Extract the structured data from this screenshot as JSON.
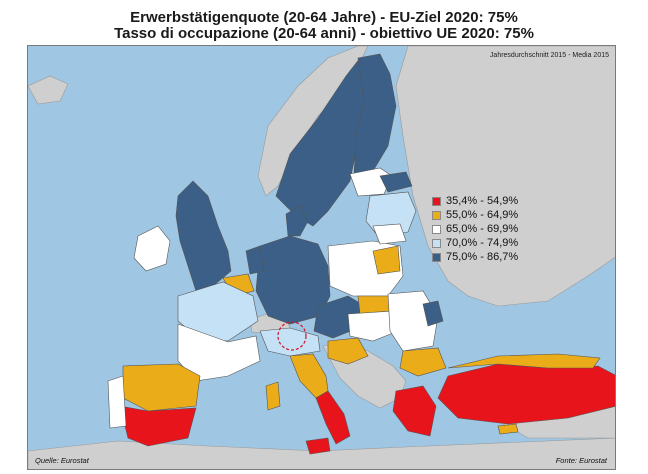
{
  "title_line1": "Erwerbstätigenquote (20-64 Jahre) - EU-Ziel 2020: 75%",
  "title_line2": "Tasso di occupazione (20-64 anni) - obiettivo UE 2020: 75%",
  "period_note": "Jahresdurchschnitt 2015 - Media 2015",
  "legend": [
    {
      "label": "35,4% - 54,9%",
      "color": "#e8141c"
    },
    {
      "label": "55,0% - 64,9%",
      "color": "#ebac1a"
    },
    {
      "label": "65,0% - 69,9%",
      "color": "#ffffff"
    },
    {
      "label": "70,0% - 74,9%",
      "color": "#c5e1f5"
    },
    {
      "label": "75,0% - 86,7%",
      "color": "#3b5f86"
    }
  ],
  "source_left": "Quelle: Eurostat",
  "source_right": "Fonte: Eurostat",
  "colors": {
    "sea": "#9fc6e2",
    "non_eu": "#cfcfcf",
    "border": "#555555",
    "marker": "#d0142a"
  }
}
